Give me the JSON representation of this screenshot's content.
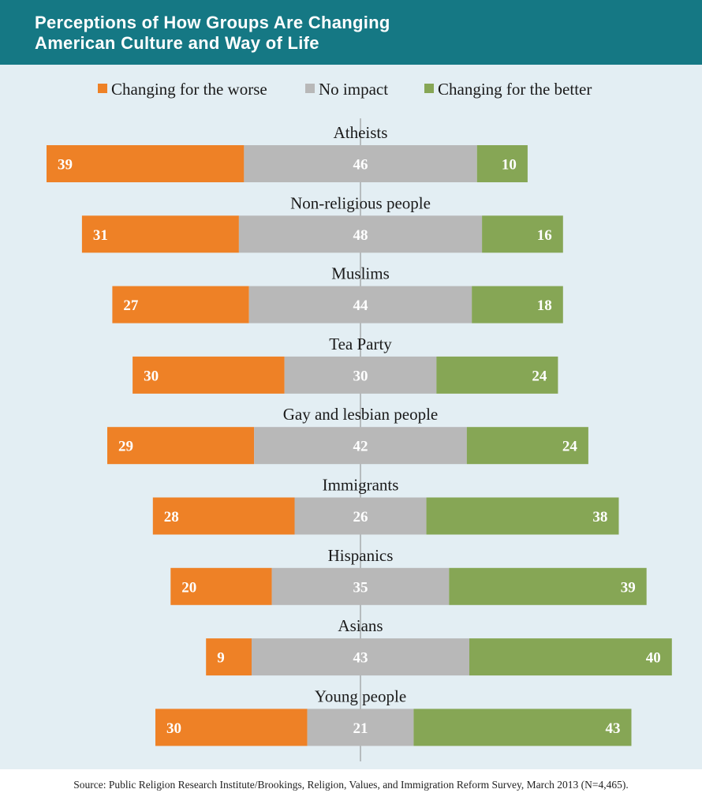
{
  "header": {
    "title_line1": "Perceptions of How Groups Are Changing",
    "title_line2": "American Culture and Way of Life"
  },
  "legend": {
    "worse": "Changing for the worse",
    "none": "No impact",
    "better": "Changing for the better"
  },
  "colors": {
    "worse": "#ee8126",
    "none": "#b8b8b8",
    "better": "#86a655",
    "header": "#157884",
    "panel": "#e3eef3"
  },
  "chart_data": {
    "type": "bar",
    "orientation": "horizontal",
    "stacked": true,
    "categories": [
      "Atheists",
      "Non-religious people",
      "Muslims",
      "Tea Party",
      "Gay and lesbian people",
      "Immigrants",
      "Hispanics",
      "Asians",
      "Young people"
    ],
    "series": [
      {
        "name": "Changing for the worse",
        "values": [
          39,
          31,
          27,
          30,
          29,
          28,
          20,
          9,
          30
        ]
      },
      {
        "name": "No impact",
        "values": [
          46,
          48,
          44,
          30,
          42,
          26,
          35,
          43,
          21
        ]
      },
      {
        "name": "Changing for the better",
        "values": [
          10,
          16,
          18,
          24,
          24,
          38,
          39,
          40,
          43
        ]
      }
    ],
    "title": "Perceptions of How Groups Are Changing American Culture and Way of Life",
    "xlabel": "",
    "ylabel": "",
    "legend_position": "top",
    "grid": false
  },
  "source": "Source: Public Religion Research Institute/Brookings, Religion, Values, and Immigration Reform Survey, March 2013 (N=4,465)."
}
